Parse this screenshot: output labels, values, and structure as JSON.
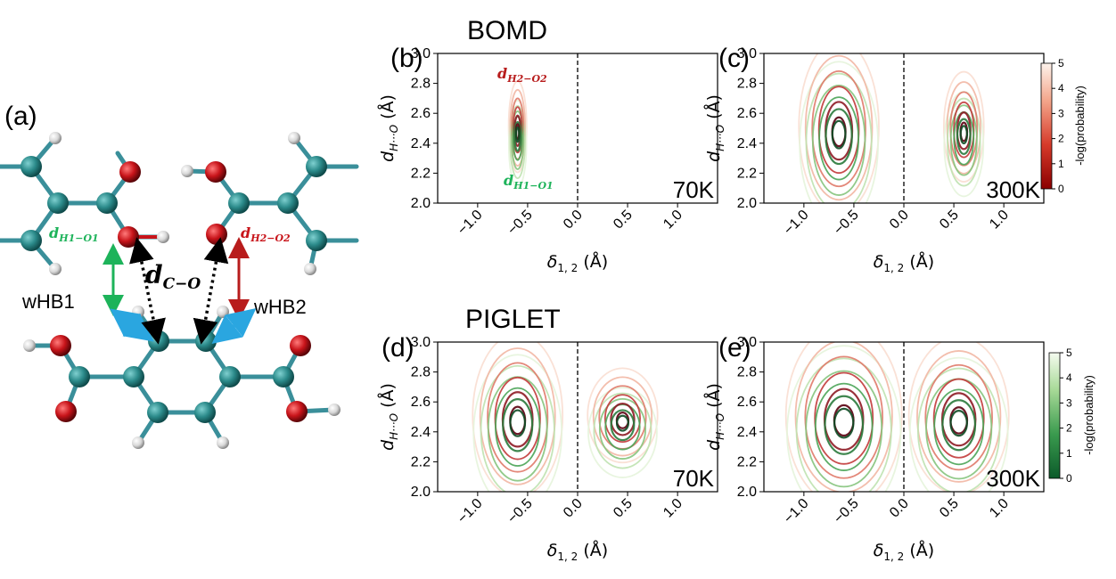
{
  "molecule": {
    "panel_label": "(a)",
    "label_dH1O1": "d",
    "label_dH1O1_sub": "H1−O1",
    "label_dH2O2": "d",
    "label_dH2O2_sub": "H2−O2",
    "label_dCO": "d",
    "label_dCO_sub": "C−O",
    "label_wHB1": "wHB1",
    "label_wHB2": "wHB2",
    "colors": {
      "carbon": "#2b8a8a",
      "oxygen": "#c8141a",
      "hydrogen": "#e8e8e8",
      "bond": "#3a8f9a",
      "green": "#1db35a",
      "red": "#b81c1c",
      "blue": "#2aa6e0"
    }
  },
  "sections": {
    "top_title": "BOMD",
    "bottom_title": "PIGLET"
  },
  "inline_labels": {
    "b_top": "d",
    "b_top_sub": "H2−O2",
    "b_bottom": "d",
    "b_bottom_sub": "H1−O1"
  },
  "axes": {
    "xlabel": "δ",
    "xlabel_sub": "1, 2",
    "xlabel_unit": "(Å)",
    "ylabel": "d",
    "ylabel_sub": "H···O",
    "ylabel_unit": "(Å)",
    "xlim": [
      -1.4,
      1.4
    ],
    "ylim": [
      2.0,
      3.0
    ],
    "xticks": [
      "−1.0",
      "−0.5",
      "0.0",
      "0.5",
      "1.0"
    ],
    "xtick_values": [
      -1.0,
      -0.5,
      0.0,
      0.5,
      1.0
    ],
    "yticks": [
      "2.0",
      "2.2",
      "2.4",
      "2.6",
      "2.8",
      "3.0"
    ],
    "ytick_values": [
      2.0,
      2.2,
      2.4,
      2.6,
      2.8,
      3.0
    ],
    "divider_x": 0.0
  },
  "colorbars": [
    {
      "ticks": [
        "0",
        "1",
        "2",
        "3",
        "4",
        "5"
      ],
      "label": "-log(probability)",
      "scheme": "reds"
    },
    {
      "ticks": [
        "0",
        "1",
        "2",
        "3",
        "4",
        "5"
      ],
      "label": "-log(probability)",
      "scheme": "greens"
    }
  ],
  "chart_data": [
    {
      "type": "contour",
      "panel": "(b)",
      "method": "BOMD",
      "temperature": "70K",
      "xlim": [
        -1.4,
        1.4
      ],
      "ylim": [
        2.0,
        3.0
      ],
      "peaks": [
        {
          "x": -0.6,
          "y": 2.47,
          "sx_max": 0.09,
          "sy_max": 0.29
        }
      ],
      "levels": [
        0,
        1,
        2,
        3,
        4,
        5
      ]
    },
    {
      "type": "contour",
      "panel": "(c)",
      "method": "BOMD",
      "temperature": "300K",
      "xlim": [
        -1.4,
        1.4
      ],
      "ylim": [
        2.0,
        3.0
      ],
      "peaks": [
        {
          "x": -0.65,
          "y": 2.47,
          "sx_max": 0.4,
          "sy_max": 0.55
        },
        {
          "x": 0.6,
          "y": 2.47,
          "sx_max": 0.2,
          "sy_max": 0.35
        }
      ],
      "levels": [
        0,
        1,
        2,
        3,
        4,
        5
      ]
    },
    {
      "type": "contour",
      "panel": "(d)",
      "method": "PIGLET",
      "temperature": "70K",
      "xlim": [
        -1.4,
        1.4
      ],
      "ylim": [
        2.0,
        3.0
      ],
      "peaks": [
        {
          "x": -0.6,
          "y": 2.47,
          "sx_max": 0.45,
          "sy_max": 0.52
        },
        {
          "x": 0.45,
          "y": 2.47,
          "sx_max": 0.35,
          "sy_max": 0.3
        }
      ],
      "levels": [
        0,
        1,
        2,
        3,
        4,
        5
      ]
    },
    {
      "type": "contour",
      "panel": "(e)",
      "method": "PIGLET",
      "temperature": "300K",
      "xlim": [
        -1.4,
        1.4
      ],
      "ylim": [
        2.0,
        3.0
      ],
      "peaks": [
        {
          "x": -0.6,
          "y": 2.47,
          "sx_max": 0.58,
          "sy_max": 0.58
        },
        {
          "x": 0.55,
          "y": 2.47,
          "sx_max": 0.5,
          "sy_max": 0.5
        }
      ],
      "levels": [
        0,
        1,
        2,
        3,
        4,
        5
      ]
    }
  ]
}
